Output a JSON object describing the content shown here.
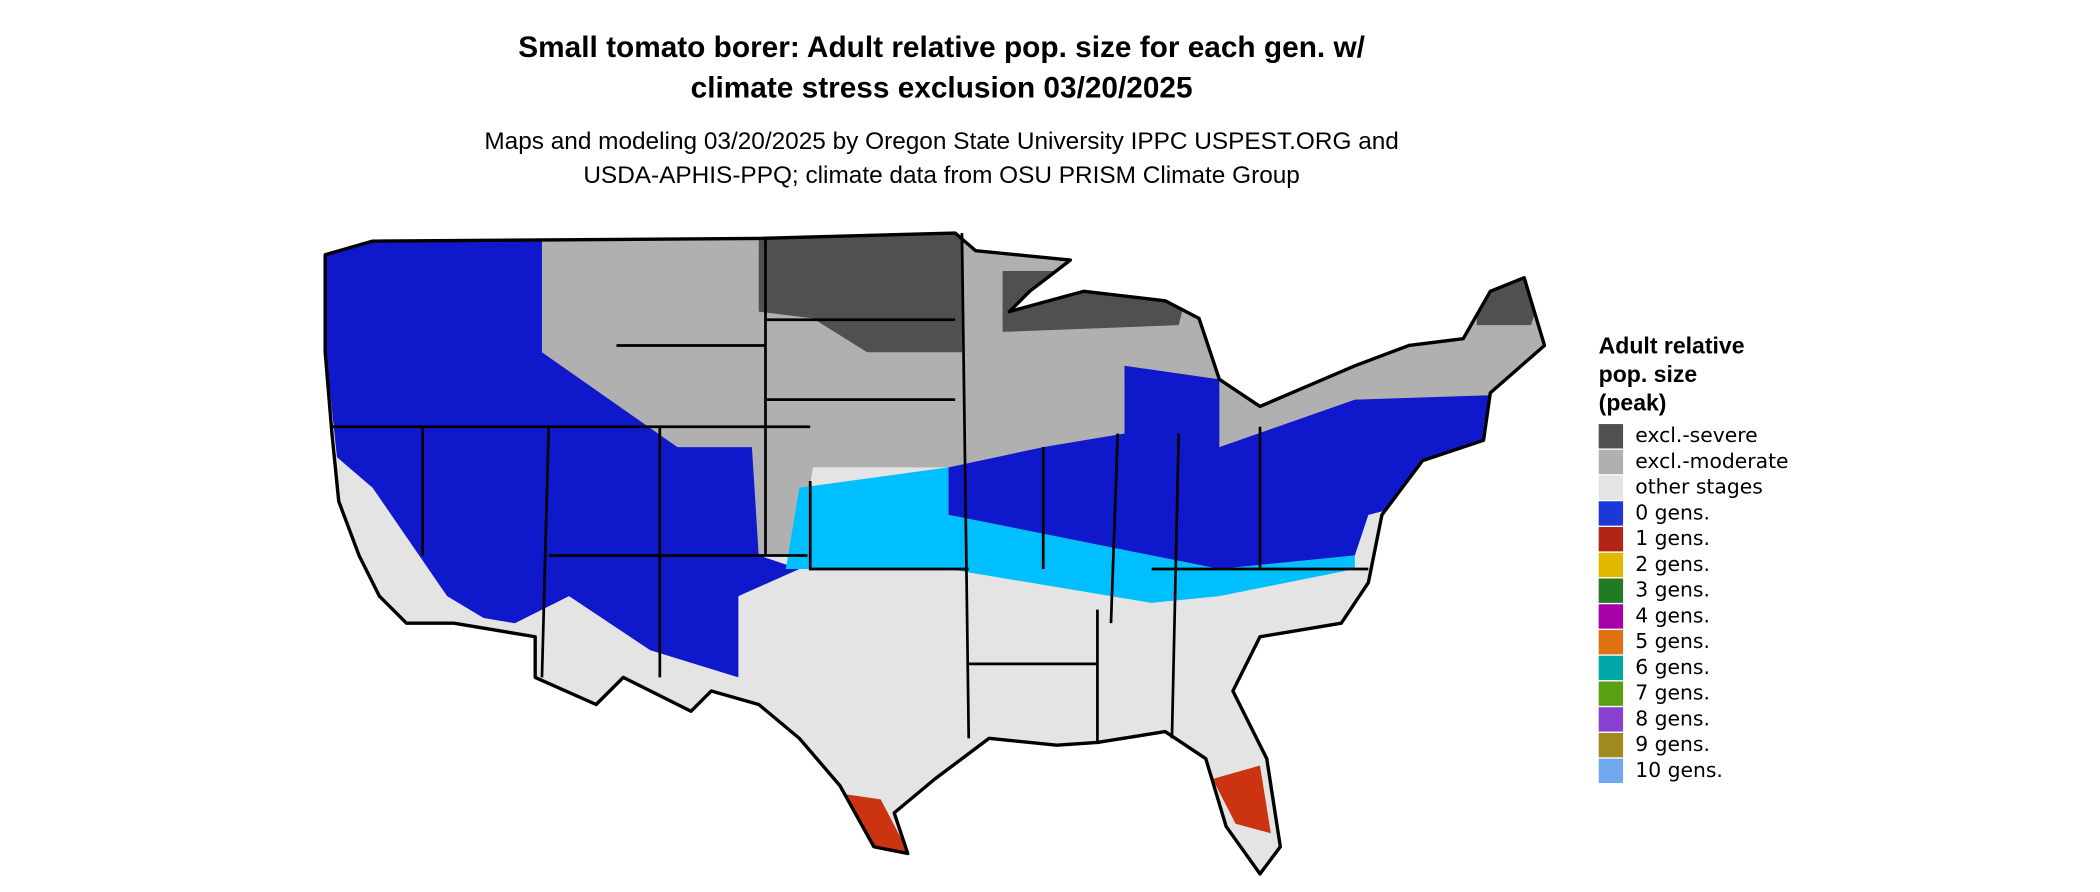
{
  "header": {
    "title": [
      "Small tomato borer: Adult relative pop. size for each gen. w/",
      "climate stress exclusion 03/20/2025"
    ],
    "subtitle": [
      "Maps and modeling 03/20/2025 by Oregon State University IPPC USPEST.ORG and",
      "USDA-APHIS-PPQ; climate data from OSU PRISM Climate Group"
    ]
  },
  "legend": {
    "title": [
      "Adult relative",
      "pop. size",
      "(peak)"
    ],
    "items": [
      {
        "label": "excl.-severe",
        "color": "#505050"
      },
      {
        "label": "excl.-moderate",
        "color": "#b0b0b0"
      },
      {
        "label": "other stages",
        "color": "#e4e4e4"
      },
      {
        "label": "0 gens.",
        "color": "#1c39d8"
      },
      {
        "label": "1 gens.",
        "color": "#b22415"
      },
      {
        "label": "2 gens.",
        "color": "#e0b800"
      },
      {
        "label": "3 gens.",
        "color": "#227a22"
      },
      {
        "label": "4 gens.",
        "color": "#a800a8"
      },
      {
        "label": "5 gens.",
        "color": "#e07010"
      },
      {
        "label": "6 gens.",
        "color": "#00a5a5"
      },
      {
        "label": "7 gens.",
        "color": "#5aa010"
      },
      {
        "label": "8 gens.",
        "color": "#8a40d0"
      },
      {
        "label": "9 gens.",
        "color": "#a08a20"
      },
      {
        "label": "10 gens.",
        "color": "#70a8f0"
      }
    ]
  }
}
